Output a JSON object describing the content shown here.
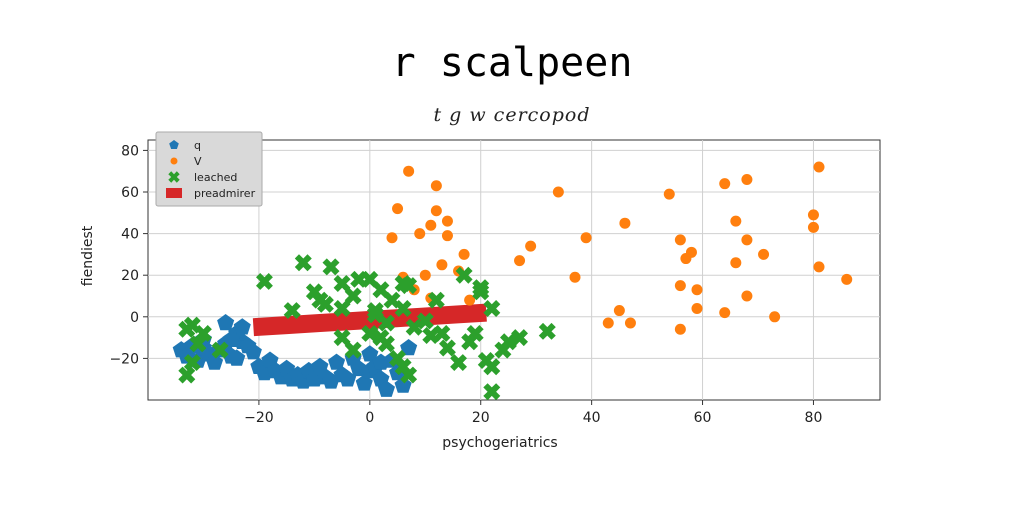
{
  "chart_data": {
    "type": "scatter",
    "title": "r scalpeen",
    "subtitle": "t g w cercopod",
    "xlabel": "psychogeriatrics",
    "ylabel": "fiendiest",
    "xlim": [
      -40,
      92
    ],
    "ylim": [
      -40,
      85
    ],
    "xticks": [
      -20,
      0,
      20,
      40,
      60,
      80
    ],
    "yticks": [
      -20,
      0,
      20,
      40,
      60,
      80
    ],
    "grid": true,
    "legend_position": "top-left",
    "series": [
      {
        "name": "q",
        "color": "#1f77b4",
        "marker": "pentagon",
        "points": [
          [
            -34,
            -16
          ],
          [
            -33,
            -19
          ],
          [
            -32,
            -14
          ],
          [
            -31,
            -21
          ],
          [
            -30,
            -15
          ],
          [
            -30,
            -11
          ],
          [
            -29,
            -18
          ],
          [
            -28,
            -22
          ],
          [
            -27,
            -16
          ],
          [
            -26,
            -13
          ],
          [
            -25,
            -19
          ],
          [
            -24,
            -20
          ],
          [
            -23,
            -12
          ],
          [
            -22,
            -14
          ],
          [
            -21,
            -17
          ],
          [
            -20,
            -24
          ],
          [
            -19,
            -27
          ],
          [
            -18,
            -21
          ],
          [
            -17,
            -26
          ],
          [
            -16,
            -29
          ],
          [
            -15,
            -25
          ],
          [
            -14,
            -30
          ],
          [
            -13,
            -28
          ],
          [
            -12,
            -31
          ],
          [
            -11,
            -26
          ],
          [
            -10,
            -30
          ],
          [
            -9,
            -24
          ],
          [
            -8,
            -29
          ],
          [
            -7,
            -31
          ],
          [
            -6,
            -22
          ],
          [
            -5,
            -28
          ],
          [
            -4,
            -30
          ],
          [
            -3,
            -20
          ],
          [
            -2,
            -25
          ],
          [
            -1,
            -32
          ],
          [
            0,
            -18
          ],
          [
            0,
            -26
          ],
          [
            1,
            -24
          ],
          [
            2,
            -22
          ],
          [
            2,
            -30
          ],
          [
            3,
            -35
          ],
          [
            4,
            -21
          ],
          [
            5,
            -27
          ],
          [
            6,
            -33
          ],
          [
            7,
            -15
          ],
          [
            -26,
            -3
          ],
          [
            -24,
            -8
          ],
          [
            -25,
            -11
          ],
          [
            -23,
            -5
          ]
        ]
      },
      {
        "name": "V",
        "color": "#ff7f0e",
        "marker": "circle",
        "points": [
          [
            7,
            70
          ],
          [
            12,
            63
          ],
          [
            5,
            52
          ],
          [
            4,
            38
          ],
          [
            12,
            51
          ],
          [
            14,
            46
          ],
          [
            11,
            44
          ],
          [
            9,
            40
          ],
          [
            14,
            39
          ],
          [
            17,
            30
          ],
          [
            13,
            25
          ],
          [
            16,
            22
          ],
          [
            10,
            20
          ],
          [
            6,
            19
          ],
          [
            8,
            13
          ],
          [
            11,
            9
          ],
          [
            18,
            8
          ],
          [
            27,
            27
          ],
          [
            29,
            34
          ],
          [
            37,
            19
          ],
          [
            34,
            60
          ],
          [
            39,
            38
          ],
          [
            46,
            45
          ],
          [
            45,
            3
          ],
          [
            43,
            -3
          ],
          [
            54,
            59
          ],
          [
            56,
            37
          ],
          [
            57,
            28
          ],
          [
            58,
            31
          ],
          [
            56,
            15
          ],
          [
            59,
            13
          ],
          [
            59,
            4
          ],
          [
            64,
            64
          ],
          [
            68,
            66
          ],
          [
            66,
            46
          ],
          [
            66,
            26
          ],
          [
            68,
            37
          ],
          [
            71,
            30
          ],
          [
            68,
            10
          ],
          [
            64,
            2
          ],
          [
            73,
            0
          ],
          [
            80,
            43
          ],
          [
            81,
            72
          ],
          [
            80,
            49
          ],
          [
            81,
            24
          ],
          [
            86,
            18
          ],
          [
            56,
            -6
          ],
          [
            47,
            -3
          ]
        ]
      },
      {
        "name": "leached",
        "color": "#2ca02c",
        "marker": "x",
        "points": [
          [
            -33,
            -6
          ],
          [
            -32,
            -4
          ],
          [
            -30,
            -8
          ],
          [
            -31,
            -13
          ],
          [
            -27,
            -16
          ],
          [
            -32,
            -22
          ],
          [
            -33,
            -28
          ],
          [
            -19,
            17
          ],
          [
            -12,
            26
          ],
          [
            -7,
            24
          ],
          [
            -5,
            16
          ],
          [
            -10,
            12
          ],
          [
            -14,
            3
          ],
          [
            -9,
            8
          ],
          [
            -8,
            6
          ],
          [
            -5,
            4
          ],
          [
            -3,
            10
          ],
          [
            -2,
            18
          ],
          [
            0,
            18
          ],
          [
            2,
            13
          ],
          [
            3,
            -3
          ],
          [
            1,
            1
          ],
          [
            0,
            -8
          ],
          [
            2,
            -10
          ],
          [
            3,
            -13
          ],
          [
            5,
            -20
          ],
          [
            6,
            -24
          ],
          [
            7,
            -28
          ],
          [
            -3,
            -16
          ],
          [
            -5,
            -10
          ],
          [
            1,
            3
          ],
          [
            6,
            4
          ],
          [
            8,
            -5
          ],
          [
            10,
            -2
          ],
          [
            12,
            8
          ],
          [
            14,
            -15
          ],
          [
            16,
            -22
          ],
          [
            18,
            -12
          ],
          [
            19,
            -8
          ],
          [
            20,
            12
          ],
          [
            20,
            14
          ],
          [
            22,
            4
          ],
          [
            21,
            -21
          ],
          [
            22,
            -24
          ],
          [
            24,
            -16
          ],
          [
            25,
            -12
          ],
          [
            27,
            -10
          ],
          [
            32,
            -7
          ],
          [
            22,
            -36
          ],
          [
            17,
            20
          ],
          [
            4,
            8
          ],
          [
            7,
            15
          ],
          [
            6,
            16
          ],
          [
            11,
            -9
          ],
          [
            13,
            -8
          ]
        ]
      },
      {
        "name": "preadmirer",
        "color": "#d62728",
        "marker": "line",
        "points": [
          [
            -21,
            -5
          ],
          [
            -15,
            -4
          ],
          [
            -9,
            -3
          ],
          [
            -3,
            -2
          ],
          [
            3,
            -1
          ],
          [
            9,
            0
          ],
          [
            15,
            1
          ],
          [
            21,
            2
          ]
        ]
      }
    ]
  }
}
